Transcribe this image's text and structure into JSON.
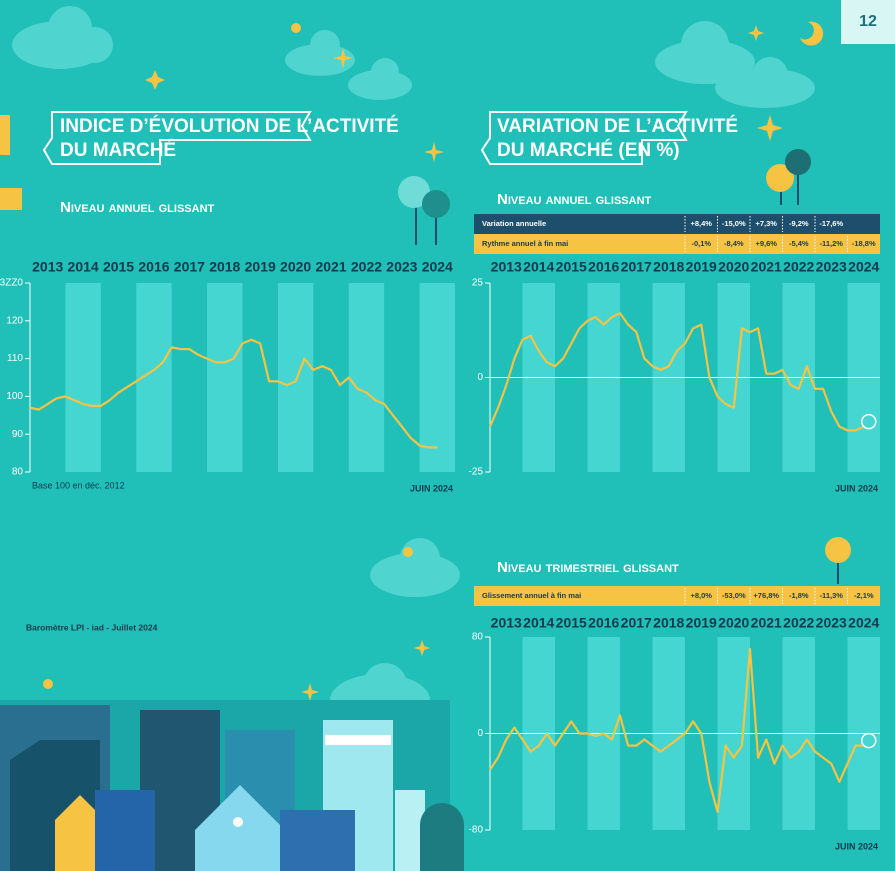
{
  "page_number": "12",
  "footer": "Baromètre LPI - iad - Juillet 2024",
  "chart_data": [
    {
      "type": "line",
      "title": [
        "INDICE D’ÉVOLUTION DE L’ACTIVITÉ",
        "DU MARCHÉ"
      ],
      "subtitle": "Niveau annuel glissant",
      "note": "Base 100 en déc. 2012",
      "date_note": "JUIN 2024",
      "color": "#f6c343",
      "xlim": [
        2013,
        2025
      ],
      "xticks": [
        {
          "value": 2013.5,
          "label": "2013"
        },
        {
          "value": 2014.5,
          "label": "2014"
        },
        {
          "value": 2015.5,
          "label": "2015"
        },
        {
          "value": 2016.5,
          "label": "2016"
        },
        {
          "value": 2017.5,
          "label": "2017"
        },
        {
          "value": 2018.5,
          "label": "2018"
        },
        {
          "value": 2019.5,
          "label": "2019"
        },
        {
          "value": 2020.5,
          "label": "2020"
        },
        {
          "value": 2021.5,
          "label": "2021"
        },
        {
          "value": 2022.5,
          "label": "2022"
        },
        {
          "value": 2023.5,
          "label": "2023"
        },
        {
          "value": 2024.5,
          "label": "2024"
        }
      ],
      "ylim": [
        80,
        130
      ],
      "yticks": [
        80,
        90,
        100,
        110,
        120,
        {
          "value": 130,
          "label": "3ZZ0"
        }
      ],
      "zero_line": false,
      "x": [
        2013,
        2013.25,
        2013.5,
        2013.75,
        2014,
        2014.25,
        2014.5,
        2014.75,
        2015,
        2015.25,
        2015.5,
        2015.75,
        2016,
        2016.25,
        2016.5,
        2016.75,
        2017,
        2017.25,
        2017.5,
        2017.75,
        2018,
        2018.25,
        2018.5,
        2018.75,
        2019,
        2019.25,
        2019.5,
        2019.75,
        2020,
        2020.25,
        2020.5,
        2020.75,
        2021,
        2021.25,
        2021.5,
        2021.75,
        2022,
        2022.25,
        2022.5,
        2022.75,
        2023,
        2023.25,
        2023.5,
        2023.75,
        2024,
        2024.25,
        2024.5
      ],
      "values": [
        97,
        96.5,
        98,
        99.5,
        100,
        99,
        98,
        97.5,
        97.5,
        99,
        101,
        102.5,
        104,
        105.5,
        107,
        109,
        113,
        112.5,
        112.5,
        111,
        110,
        109,
        109,
        110,
        114,
        115,
        114,
        104,
        104,
        103,
        104,
        110,
        107,
        108,
        107,
        103,
        105,
        102,
        101,
        99,
        98,
        95,
        92,
        89,
        87,
        86.5,
        86.5
      ]
    },
    {
      "type": "line",
      "title": [
        "VARIATION DE L’ACTIVITÉ",
        "DU MARCHÉ (EN %)"
      ],
      "subtitle": "Niveau annuel glissant",
      "date_note": "JUIN 2024",
      "color": "#f6c343",
      "table": {
        "rows": [
          {
            "label": "Variation annuelle",
            "color": "#1d4e6b",
            "text_color": "#ffffff",
            "cells": [
              "+8,4%",
              "-15,0%",
              "+7,3%",
              "-9,2%",
              "-17,6%"
            ]
          },
          {
            "label": "Rythme annuel à fin mai",
            "color": "#f6c343",
            "text_color": "#1d3a4a",
            "cells": [
              "-0,1%",
              "-8,4%",
              "+9,6%",
              "-5,4%",
              "-11,2%",
              "-18,8%"
            ]
          }
        ]
      },
      "xlim": [
        2013,
        2025
      ],
      "xticks": [
        {
          "value": 2013.5,
          "label": "2013"
        },
        {
          "value": 2014.5,
          "label": "2014"
        },
        {
          "value": 2015.5,
          "label": "2015"
        },
        {
          "value": 2016.5,
          "label": "2016"
        },
        {
          "value": 2017.5,
          "label": "2017"
        },
        {
          "value": 2018.5,
          "label": "2018"
        },
        {
          "value": 2019.5,
          "label": "2019"
        },
        {
          "value": 2020.5,
          "label": "2020"
        },
        {
          "value": 2021.5,
          "label": "2021"
        },
        {
          "value": 2022.5,
          "label": "2022"
        },
        {
          "value": 2023.5,
          "label": "2023"
        },
        {
          "value": 2024.5,
          "label": "2024"
        }
      ],
      "ylim": [
        -25,
        25
      ],
      "yticks": [
        -25,
        0,
        25
      ],
      "zero_line": true,
      "x": [
        2013,
        2013.25,
        2013.5,
        2013.75,
        2014,
        2014.25,
        2014.5,
        2014.75,
        2015,
        2015.25,
        2015.5,
        2015.75,
        2016,
        2016.25,
        2016.5,
        2016.75,
        2017,
        2017.25,
        2017.5,
        2017.75,
        2018,
        2018.25,
        2018.5,
        2018.75,
        2019,
        2019.25,
        2019.5,
        2019.75,
        2020,
        2020.25,
        2020.5,
        2020.75,
        2021,
        2021.25,
        2021.5,
        2021.75,
        2022,
        2022.25,
        2022.5,
        2022.75,
        2023,
        2023.25,
        2023.5,
        2023.75,
        2024,
        2024.25,
        2024.5
      ],
      "values": [
        -13,
        -8,
        -2,
        5,
        10,
        11,
        7,
        4,
        3,
        5,
        9,
        13,
        15,
        16,
        14,
        16,
        17,
        14,
        12,
        5,
        3,
        2,
        3,
        7,
        9,
        13,
        14,
        0,
        -5,
        -7,
        -8,
        13,
        12,
        13,
        1,
        1,
        2,
        -2,
        -3,
        3,
        -3,
        -3,
        -9,
        -13,
        -14,
        -14,
        -13
      ]
    },
    {
      "type": "line",
      "subtitle": "Niveau trimestriel glissant",
      "date_note": "JUIN 2024",
      "color": "#f6c343",
      "table": {
        "rows": [
          {
            "label": "Glissement annuel à fin mai",
            "color": "#f6c343",
            "text_color": "#1d3a4a",
            "cells": [
              "+8,0%",
              "-53,0%",
              "+76,8%",
              "-1,8%",
              "-11,3%",
              "-2,1%"
            ]
          }
        ]
      },
      "xlim": [
        2013,
        2025
      ],
      "xticks": [
        {
          "value": 2013.5,
          "label": "2013"
        },
        {
          "value": 2014.5,
          "label": "2014"
        },
        {
          "value": 2015.5,
          "label": "2015"
        },
        {
          "value": 2016.5,
          "label": "2016"
        },
        {
          "value": 2017.5,
          "label": "2017"
        },
        {
          "value": 2018.5,
          "label": "2018"
        },
        {
          "value": 2019.5,
          "label": "2019"
        },
        {
          "value": 2020.5,
          "label": "2020"
        },
        {
          "value": 2021.5,
          "label": "2021"
        },
        {
          "value": 2022.5,
          "label": "2022"
        },
        {
          "value": 2023.5,
          "label": "2023"
        },
        {
          "value": 2024.5,
          "label": "2024"
        }
      ],
      "ylim": [
        -80,
        80
      ],
      "yticks": [
        -80,
        0,
        80
      ],
      "zero_line": true,
      "x": [
        2013,
        2013.25,
        2013.5,
        2013.75,
        2014,
        2014.25,
        2014.5,
        2014.75,
        2015,
        2015.25,
        2015.5,
        2015.75,
        2016,
        2016.25,
        2016.5,
        2016.75,
        2017,
        2017.25,
        2017.5,
        2017.75,
        2018,
        2018.25,
        2018.5,
        2018.75,
        2019,
        2019.25,
        2019.5,
        2019.75,
        2020,
        2020.25,
        2020.5,
        2020.75,
        2021,
        2021.25,
        2021.5,
        2021.75,
        2022,
        2022.25,
        2022.5,
        2022.75,
        2023,
        2023.25,
        2023.5,
        2023.75,
        2024,
        2024.25,
        2024.5
      ],
      "values": [
        -30,
        -20,
        -5,
        5,
        -5,
        -15,
        -10,
        0,
        -10,
        0,
        10,
        0,
        0,
        -2,
        0,
        -5,
        15,
        -10,
        -10,
        -5,
        -10,
        -15,
        -10,
        -5,
        0,
        10,
        0,
        -40,
        -65,
        -10,
        -20,
        -10,
        70,
        -20,
        -5,
        -25,
        -10,
        -20,
        -15,
        -5,
        -15,
        -20,
        -25,
        -40,
        -25,
        -10,
        -10
      ]
    }
  ]
}
